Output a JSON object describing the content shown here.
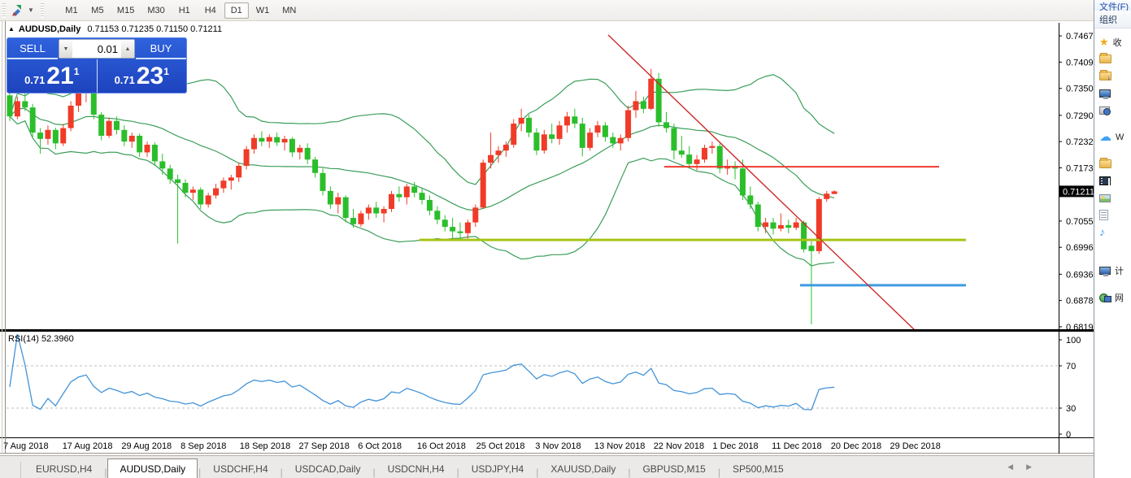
{
  "toolbar": {
    "timeframes": [
      "M1",
      "M5",
      "M15",
      "M30",
      "H1",
      "H4",
      "D1",
      "W1",
      "MN"
    ],
    "active_timeframe": "D1"
  },
  "title": {
    "collapse_glyph": "▲",
    "symbol": "AUDUSD,Daily",
    "ohlc_text": "0.71153 0.71235 0.71150 0.71211"
  },
  "one_click": {
    "sell_label": "SELL",
    "buy_label": "BUY",
    "volume": "0.01",
    "spin_down_glyph": "▼",
    "spin_up_glyph": "▲",
    "sell_price_small": "0.71",
    "sell_price_big": "21",
    "sell_price_sup": "1",
    "buy_price_small": "0.71",
    "buy_price_big": "23",
    "buy_price_sup": "1"
  },
  "rsi_label": "RSI(14) 52.3960",
  "tabs": {
    "items": [
      "EURUSD,H4",
      "AUDUSD,Daily",
      "USDCHF,H4",
      "USDCAD,Daily",
      "USDCNH,H4",
      "USDJPY,H4",
      "XAUUSD,Daily",
      "GBPUSD,M15",
      "SP500,M15"
    ],
    "active": "AUDUSD,Daily",
    "separator": "|",
    "scroll_left_glyph": "◀",
    "scroll_right_glyph": "▶"
  },
  "explorer": {
    "menu": "文件(F)",
    "organize": "组织",
    "items": [
      {
        "kind": "star",
        "label": "收"
      },
      {
        "kind": "folder",
        "label": ""
      },
      {
        "kind": "folder-down",
        "label": ""
      },
      {
        "kind": "desktop",
        "label": ""
      },
      {
        "kind": "recent",
        "label": ""
      },
      {
        "kind": "cloud",
        "label": "W"
      },
      {
        "kind": "libraries",
        "label": ""
      },
      {
        "kind": "videos",
        "label": ""
      },
      {
        "kind": "pictures",
        "label": ""
      },
      {
        "kind": "documents",
        "label": ""
      },
      {
        "kind": "music",
        "label": ""
      },
      {
        "kind": "computer",
        "label": "计"
      },
      {
        "kind": "network",
        "label": "网"
      }
    ]
  },
  "chart_data": {
    "type": "candlestick",
    "symbol": "AUDUSD",
    "timeframe": "Daily",
    "current_ohlc": {
      "open": 0.71153,
      "high": 0.71235,
      "low": 0.7115,
      "close": 0.71211
    },
    "bid": "0.7121",
    "ask": "0.7123",
    "ylim": [
      0.6814,
      0.7484
    ],
    "grid": false,
    "indicators": [
      {
        "name": "Bollinger Bands",
        "period": 20,
        "deviation": 2
      },
      {
        "name": "RSI",
        "period": 14,
        "value": 52.396,
        "levels": [
          70,
          30
        ],
        "range": [
          0,
          100
        ]
      }
    ],
    "axis": {
      "price_labels": [
        "0.74675",
        "0.74090",
        "0.73505",
        "0.72905",
        "0.72320",
        "0.71735",
        "0.70550",
        "0.69965",
        "0.69365",
        "0.68780",
        "0.68195"
      ],
      "current_price_tag": "0.71211",
      "rsi_labels": [
        {
          "text": "100",
          "value": 100
        },
        {
          "text": "70",
          "value": 70
        },
        {
          "text": "30",
          "value": 30
        },
        {
          "text": "0",
          "value": 0
        }
      ],
      "dates": [
        "7 Aug 2018",
        "17 Aug 2018",
        "29 Aug 2018",
        "8 Sep 2018",
        "18 Sep 2018",
        "27 Sep 2018",
        "6 Oct 2018",
        "16 Oct 2018",
        "25 Oct 2018",
        "3 Nov 2018",
        "13 Nov 2018",
        "22 Nov 2018",
        "1 Dec 2018",
        "11 Dec 2018",
        "20 Dec 2018",
        "29 Dec 2018"
      ]
    },
    "candles": [
      [
        0.7335,
        0.7346,
        0.7278,
        0.7288
      ],
      [
        0.7288,
        0.7332,
        0.7282,
        0.7322
      ],
      [
        0.7322,
        0.7341,
        0.73,
        0.7308
      ],
      [
        0.7308,
        0.7316,
        0.724,
        0.7252
      ],
      [
        0.7252,
        0.7262,
        0.7205,
        0.7238
      ],
      [
        0.7238,
        0.7268,
        0.7225,
        0.7258
      ],
      [
        0.7258,
        0.7263,
        0.7215,
        0.7228
      ],
      [
        0.7228,
        0.7271,
        0.7222,
        0.7262
      ],
      [
        0.7262,
        0.7322,
        0.7255,
        0.7312
      ],
      [
        0.7312,
        0.7348,
        0.7298,
        0.734
      ],
      [
        0.734,
        0.7365,
        0.732,
        0.7355
      ],
      [
        0.7355,
        0.7362,
        0.7282,
        0.7292
      ],
      [
        0.7292,
        0.7298,
        0.7235,
        0.7245
      ],
      [
        0.7245,
        0.7285,
        0.724,
        0.7278
      ],
      [
        0.7278,
        0.7288,
        0.7248,
        0.7258
      ],
      [
        0.7258,
        0.7268,
        0.7222,
        0.7232
      ],
      [
        0.7232,
        0.7252,
        0.7218,
        0.7245
      ],
      [
        0.7245,
        0.725,
        0.7198,
        0.7208
      ],
      [
        0.7208,
        0.7232,
        0.7198,
        0.7225
      ],
      [
        0.7225,
        0.723,
        0.7178,
        0.7188
      ],
      [
        0.7188,
        0.7205,
        0.7158,
        0.7172
      ],
      [
        0.7172,
        0.718,
        0.7138,
        0.7148
      ],
      [
        0.7148,
        0.7158,
        0.7005,
        0.714
      ],
      [
        0.714,
        0.7148,
        0.7108,
        0.7118
      ],
      [
        0.7118,
        0.7132,
        0.7102,
        0.7125
      ],
      [
        0.7125,
        0.713,
        0.7082,
        0.7092
      ],
      [
        0.7092,
        0.7118,
        0.7085,
        0.7112
      ],
      [
        0.7112,
        0.7138,
        0.7105,
        0.7128
      ],
      [
        0.7128,
        0.7152,
        0.7118,
        0.7145
      ],
      [
        0.7145,
        0.7158,
        0.7125,
        0.7152
      ],
      [
        0.7152,
        0.7185,
        0.7142,
        0.7178
      ],
      [
        0.7178,
        0.7222,
        0.717,
        0.7215
      ],
      [
        0.7215,
        0.7248,
        0.7205,
        0.724
      ],
      [
        0.724,
        0.7255,
        0.7222,
        0.7232
      ],
      [
        0.7232,
        0.7248,
        0.7218,
        0.7242
      ],
      [
        0.7242,
        0.7252,
        0.7222,
        0.723
      ],
      [
        0.723,
        0.7245,
        0.7212,
        0.7238
      ],
      [
        0.7238,
        0.7242,
        0.7198,
        0.7208
      ],
      [
        0.7208,
        0.7225,
        0.7192,
        0.7218
      ],
      [
        0.7218,
        0.7228,
        0.7182,
        0.7192
      ],
      [
        0.7192,
        0.7198,
        0.7152,
        0.7162
      ],
      [
        0.7162,
        0.7172,
        0.7112,
        0.7122
      ],
      [
        0.7122,
        0.7132,
        0.7082,
        0.7092
      ],
      [
        0.7092,
        0.7118,
        0.7072,
        0.7108
      ],
      [
        0.7108,
        0.7112,
        0.7052,
        0.7062
      ],
      [
        0.7062,
        0.7082,
        0.704,
        0.7048
      ],
      [
        0.7048,
        0.7078,
        0.7042,
        0.7072
      ],
      [
        0.7072,
        0.7092,
        0.7058,
        0.7085
      ],
      [
        0.7085,
        0.7098,
        0.7062,
        0.7072
      ],
      [
        0.7072,
        0.7088,
        0.7052,
        0.7082
      ],
      [
        0.7082,
        0.7122,
        0.7075,
        0.7115
      ],
      [
        0.7115,
        0.7132,
        0.7098,
        0.7108
      ],
      [
        0.7108,
        0.7138,
        0.7092,
        0.7132
      ],
      [
        0.7132,
        0.7142,
        0.7108,
        0.7118
      ],
      [
        0.7118,
        0.7128,
        0.7092,
        0.7102
      ],
      [
        0.7102,
        0.7112,
        0.7068,
        0.7078
      ],
      [
        0.7078,
        0.7088,
        0.7048,
        0.7058
      ],
      [
        0.7058,
        0.7068,
        0.7032,
        0.7042
      ],
      [
        0.7042,
        0.7062,
        0.7013,
        0.7032
      ],
      [
        0.7032,
        0.7052,
        0.7014,
        0.7028
      ],
      [
        0.7028,
        0.7058,
        0.7016,
        0.7052
      ],
      [
        0.7052,
        0.7092,
        0.7042,
        0.7085
      ],
      [
        0.7085,
        0.7192,
        0.7082,
        0.7185
      ],
      [
        0.7185,
        0.7252,
        0.7172,
        0.7202
      ],
      [
        0.7202,
        0.7222,
        0.7185,
        0.7212
      ],
      [
        0.7212,
        0.7232,
        0.7198,
        0.7225
      ],
      [
        0.7225,
        0.7282,
        0.7218,
        0.7272
      ],
      [
        0.7272,
        0.7305,
        0.7255,
        0.7285
      ],
      [
        0.7285,
        0.7292,
        0.7242,
        0.7252
      ],
      [
        0.7252,
        0.7262,
        0.7202,
        0.7212
      ],
      [
        0.7212,
        0.7258,
        0.7205,
        0.7248
      ],
      [
        0.7248,
        0.7272,
        0.7228,
        0.7238
      ],
      [
        0.7238,
        0.7278,
        0.7225,
        0.7268
      ],
      [
        0.7268,
        0.7298,
        0.7252,
        0.7288
      ],
      [
        0.7288,
        0.7305,
        0.7262,
        0.7272
      ],
      [
        0.7272,
        0.7285,
        0.7199,
        0.7218
      ],
      [
        0.7218,
        0.7262,
        0.7212,
        0.7252
      ],
      [
        0.7252,
        0.7278,
        0.7242,
        0.7268
      ],
      [
        0.7268,
        0.7275,
        0.7232,
        0.7242
      ],
      [
        0.7242,
        0.7252,
        0.7218,
        0.7228
      ],
      [
        0.7228,
        0.7248,
        0.7212,
        0.724
      ],
      [
        0.724,
        0.7312,
        0.7232,
        0.7302
      ],
      [
        0.7302,
        0.7345,
        0.7285,
        0.7322
      ],
      [
        0.7322,
        0.7332,
        0.7295,
        0.7305
      ],
      [
        0.7305,
        0.7394,
        0.7302,
        0.7372
      ],
      [
        0.7372,
        0.7385,
        0.7265,
        0.7275
      ],
      [
        0.7275,
        0.7298,
        0.7252,
        0.7262
      ],
      [
        0.7262,
        0.7272,
        0.7192,
        0.7212
      ],
      [
        0.7212,
        0.7245,
        0.7196,
        0.7203
      ],
      [
        0.7203,
        0.7222,
        0.7172,
        0.7182
      ],
      [
        0.7182,
        0.7202,
        0.7168,
        0.7192
      ],
      [
        0.7192,
        0.7225,
        0.7185,
        0.7218
      ],
      [
        0.7218,
        0.7232,
        0.7205,
        0.7222
      ],
      [
        0.7222,
        0.7228,
        0.7162,
        0.7172
      ],
      [
        0.7172,
        0.7192,
        0.7158,
        0.7178
      ],
      [
        0.7178,
        0.7188,
        0.7148,
        0.7172
      ],
      [
        0.7172,
        0.7192,
        0.7102,
        0.7112
      ],
      [
        0.7112,
        0.7132,
        0.7082,
        0.7092
      ],
      [
        0.7092,
        0.7098,
        0.7032,
        0.7042
      ],
      [
        0.7042,
        0.7062,
        0.7028,
        0.7052
      ],
      [
        0.7052,
        0.7062,
        0.7025,
        0.7038
      ],
      [
        0.7038,
        0.7072,
        0.7032,
        0.7046
      ],
      [
        0.7046,
        0.7058,
        0.7028,
        0.704
      ],
      [
        0.704,
        0.7062,
        0.7035,
        0.7052
      ],
      [
        0.7052,
        0.7056,
        0.6985,
        0.6992
      ],
      [
        0.7,
        0.701,
        0.6825,
        0.6988
      ],
      [
        0.6988,
        0.7108,
        0.6982,
        0.7104
      ],
      [
        0.7104,
        0.7122,
        0.7098,
        0.7116
      ],
      [
        0.71153,
        0.71235,
        0.7115,
        0.71211
      ]
    ],
    "overlays": {
      "trendline": {
        "x1": 748,
        "y1": 43,
        "x2": 1126,
        "y2": 407
      },
      "hlines": [
        {
          "name": "resistance-red",
          "price": 0.7176,
          "x1": 817,
          "x2": 1155,
          "color": "#EF3B30",
          "width": 2
        },
        {
          "name": "support-yellow",
          "price": 0.7013,
          "x1": 516,
          "x2": 1188,
          "color": "#A8C414",
          "width": 3
        },
        {
          "name": "support-blue",
          "price": 0.6912,
          "x1": 984,
          "x2": 1188,
          "color": "#3E9BE0",
          "width": 3
        }
      ]
    },
    "colors": {
      "bull": "#F03B28",
      "bear": "#2BBE2B",
      "band": "#3C9E5A",
      "rsi": "#4393D8",
      "dashed_level": "#BFBFBF",
      "trend": "#CC2B2B",
      "tag_bg": "#000000",
      "tag_fg": "#FFFFFF",
      "panel_blue": "#2757CE",
      "axis_text": "#000000"
    },
    "layout": {
      "plot": {
        "x0": 8,
        "x1": 1302,
        "y_top": 35,
        "y_bottom": 405
      },
      "candle_x0": 12,
      "candle_dx": 9.39,
      "body_w": 7,
      "rsi": {
        "y_top": 410,
        "y_bottom": 538,
        "y70": 450,
        "y30": 502
      },
      "axis_x": 1302,
      "label_x": 1307,
      "date_y": 552,
      "date_x0": 4,
      "date_dx": 72.7,
      "legend_position": "none"
    }
  }
}
